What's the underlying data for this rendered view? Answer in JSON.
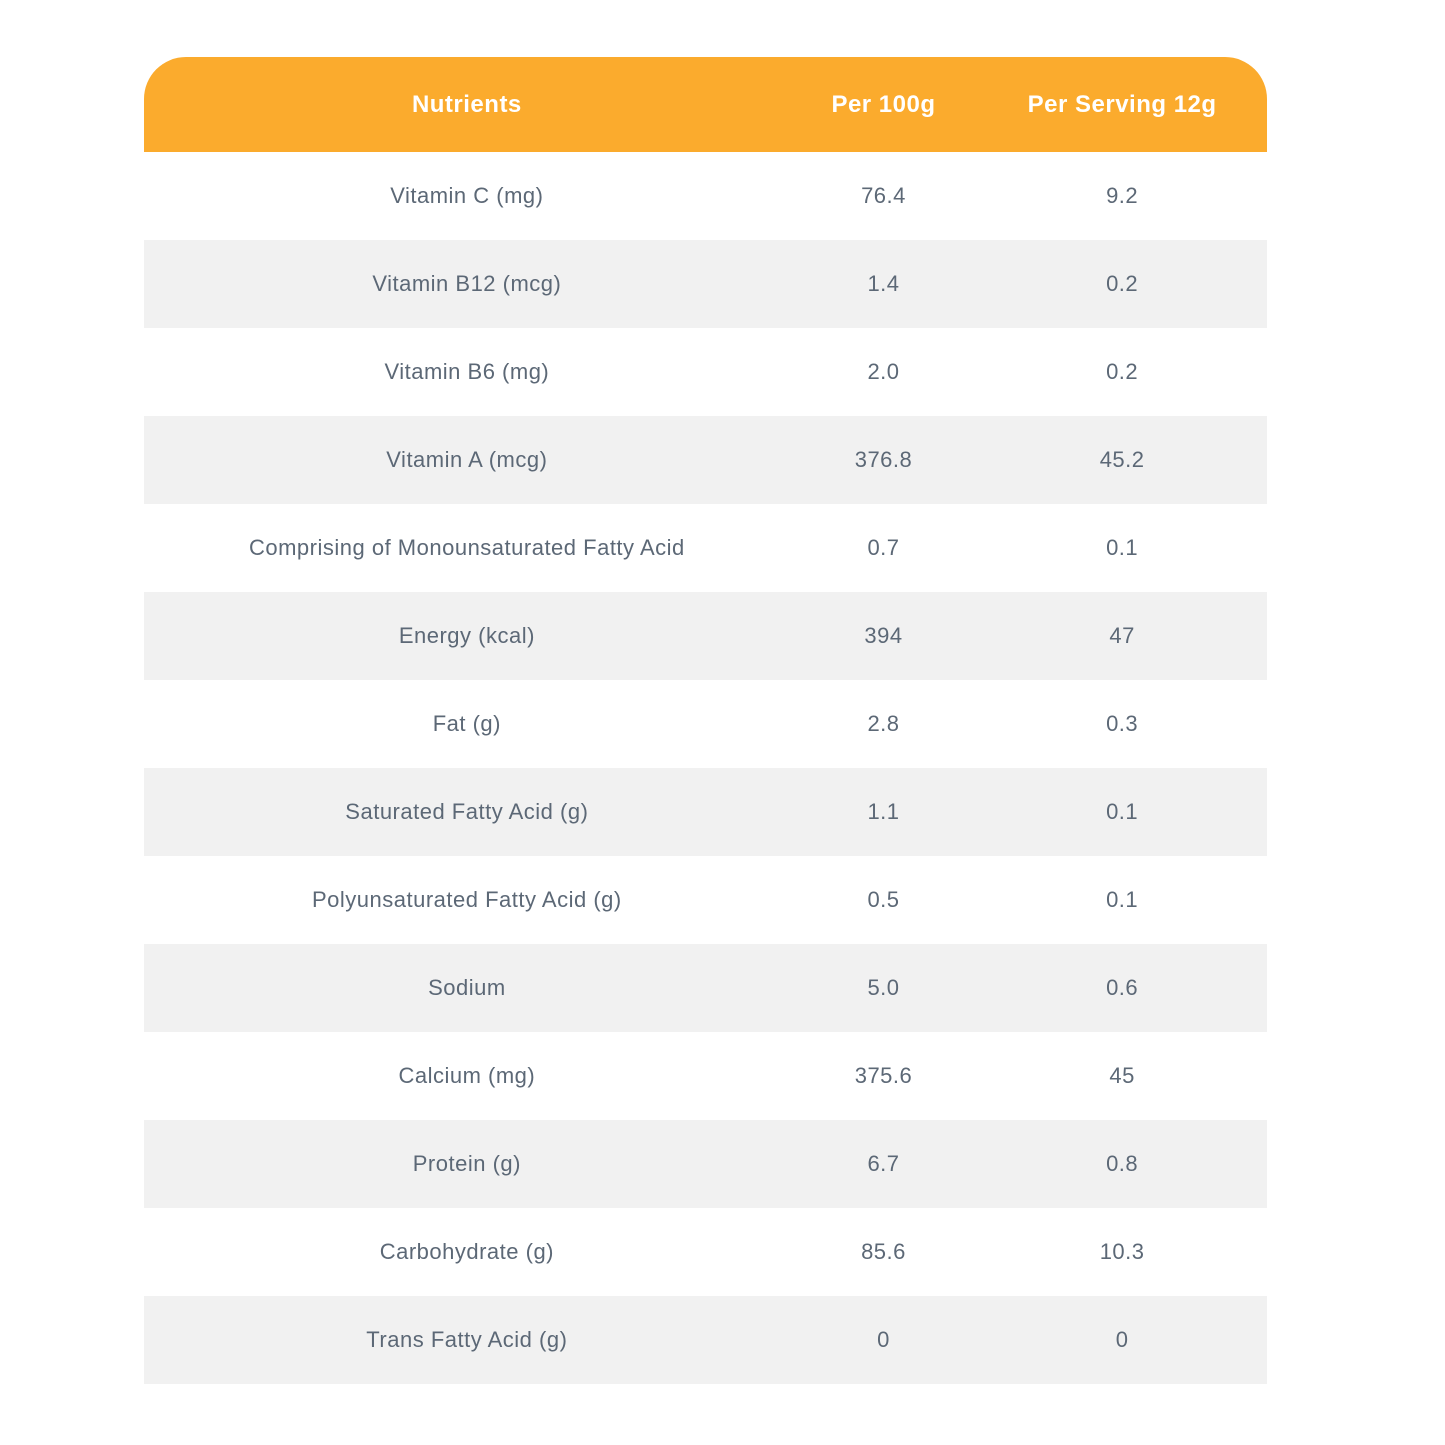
{
  "colors": {
    "header_bg": "#FBAB2D",
    "row_alt_bg": "#F1F1F1",
    "row_bg": "#FFFFFF",
    "header_text": "#FFFFFF",
    "body_text": "#5C6876"
  },
  "table": {
    "columns": {
      "nutrient": "Nutrients",
      "per_100g": "Per 100g",
      "per_serving": "Per Serving 12g"
    },
    "rows": [
      {
        "nutrient": "Vitamin C (mg)",
        "per_100g": "76.4",
        "per_serving": "9.2"
      },
      {
        "nutrient": "Vitamin B12 (mcg)",
        "per_100g": "1.4",
        "per_serving": "0.2"
      },
      {
        "nutrient": "Vitamin B6 (mg)",
        "per_100g": "2.0",
        "per_serving": "0.2"
      },
      {
        "nutrient": "Vitamin A (mcg)",
        "per_100g": "376.8",
        "per_serving": "45.2"
      },
      {
        "nutrient": "Comprising of Monounsaturated Fatty Acid",
        "per_100g": "0.7",
        "per_serving": "0.1"
      },
      {
        "nutrient": "Energy (kcal)",
        "per_100g": "394",
        "per_serving": "47"
      },
      {
        "nutrient": "Fat (g)",
        "per_100g": "2.8",
        "per_serving": "0.3"
      },
      {
        "nutrient": "Saturated Fatty Acid (g)",
        "per_100g": "1.1",
        "per_serving": "0.1"
      },
      {
        "nutrient": "Polyunsaturated Fatty Acid (g)",
        "per_100g": "0.5",
        "per_serving": "0.1"
      },
      {
        "nutrient": "Sodium",
        "per_100g": "5.0",
        "per_serving": "0.6"
      },
      {
        "nutrient": "Calcium (mg)",
        "per_100g": "375.6",
        "per_serving": "45"
      },
      {
        "nutrient": "Protein (g)",
        "per_100g": "6.7",
        "per_serving": "0.8"
      },
      {
        "nutrient": "Carbohydrate (g)",
        "per_100g": "85.6",
        "per_serving": "10.3"
      },
      {
        "nutrient": "Trans Fatty Acid (g)",
        "per_100g": "0",
        "per_serving": "0"
      }
    ]
  }
}
